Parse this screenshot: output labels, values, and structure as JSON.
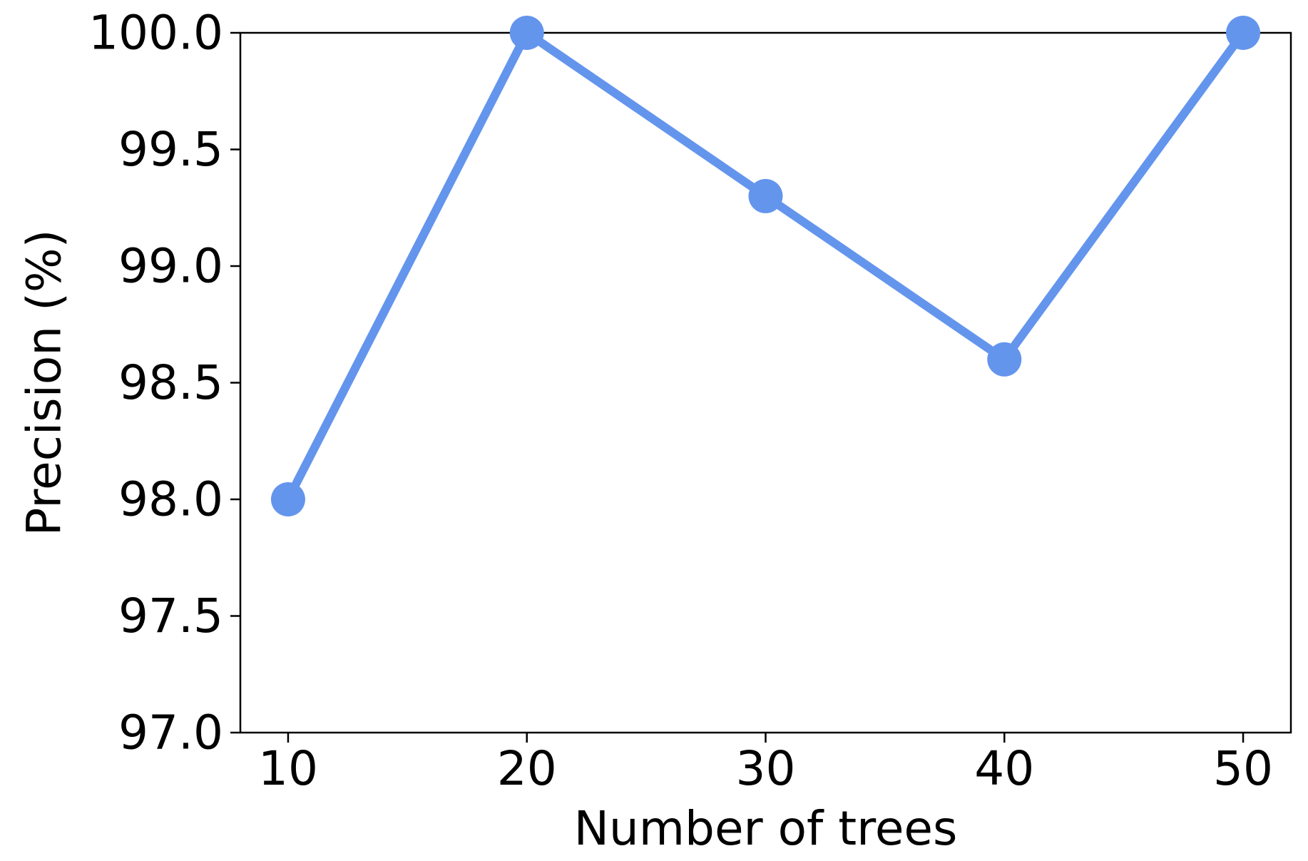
{
  "chart_data": {
    "type": "line",
    "title": "",
    "xlabel": "Number of trees",
    "ylabel": "Precision (%)",
    "x": [
      10,
      20,
      30,
      40,
      50
    ],
    "series": [
      {
        "values": [
          98.0,
          100.0,
          99.3,
          98.6,
          100.0
        ],
        "color": "#6495ED",
        "marker": "circle"
      }
    ],
    "xticks": [
      10,
      20,
      30,
      40,
      50
    ],
    "xtick_labels": [
      "10",
      "20",
      "30",
      "40",
      "50"
    ],
    "yticks": [
      97.0,
      97.5,
      98.0,
      98.5,
      99.0,
      99.5,
      100.0
    ],
    "ytick_labels": [
      "97.0",
      "97.5",
      "98.0",
      "98.5",
      "99.0",
      "99.5",
      "100.0"
    ],
    "xlim": [
      8,
      52
    ],
    "ylim": [
      97.0,
      100.0
    ],
    "grid": false,
    "legend": "none"
  }
}
